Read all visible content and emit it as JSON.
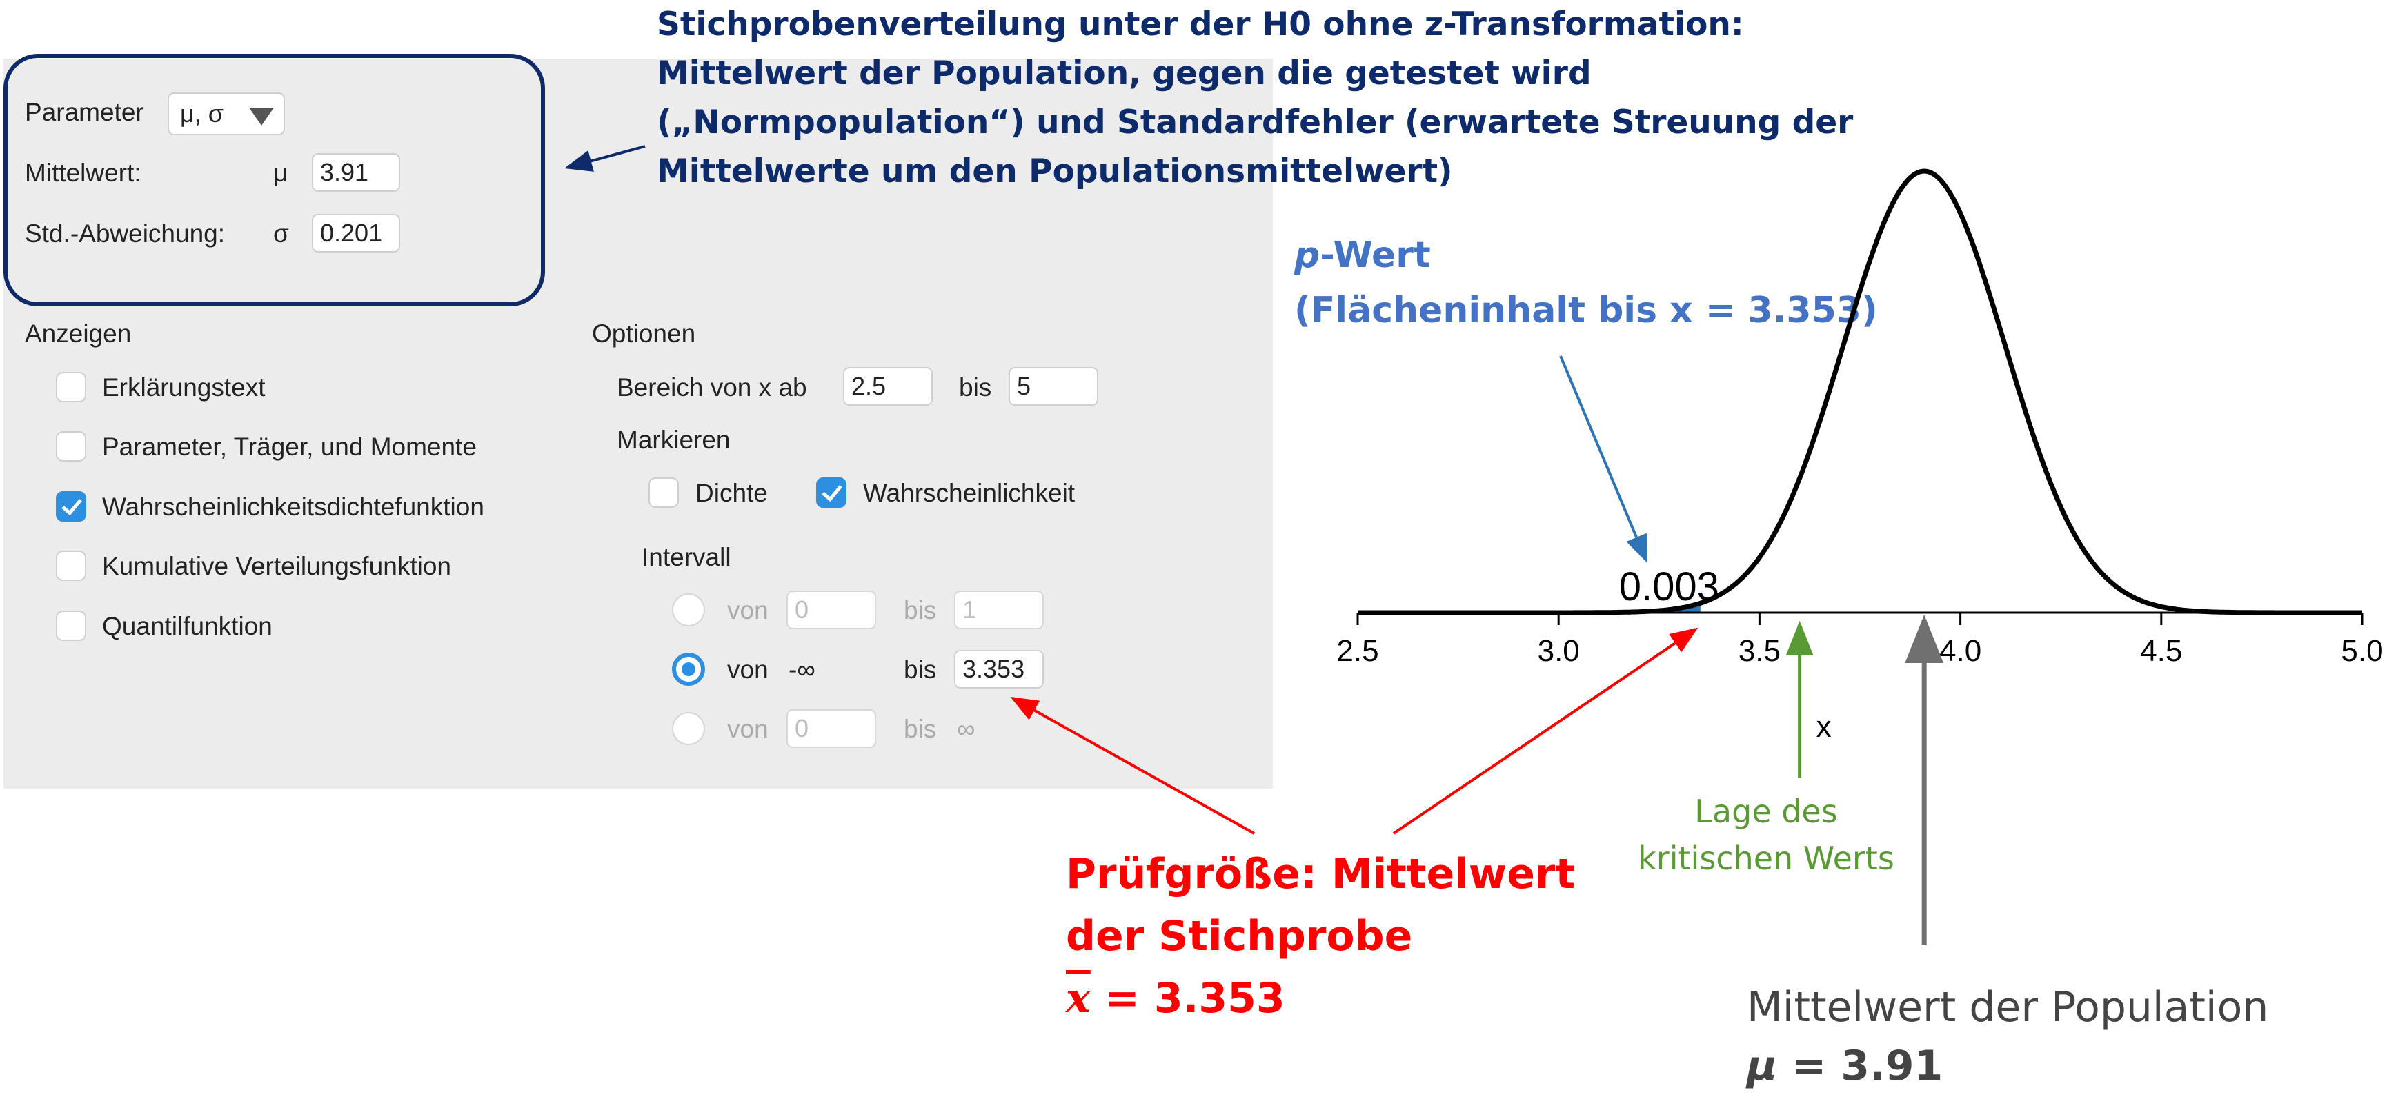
{
  "parameter": {
    "label": "Parameter",
    "select_value": "μ, σ",
    "mean_label": "Mittelwert:",
    "mean_symbol": "μ",
    "mean_value": "3.91",
    "sd_label": "Std.-Abweichung:",
    "sd_symbol": "σ",
    "sd_value": "0.201"
  },
  "anzeigen": {
    "heading": "Anzeigen",
    "items": [
      {
        "label": "Erklärungstext",
        "checked": false
      },
      {
        "label": "Parameter, Träger, und Momente",
        "checked": false
      },
      {
        "label": "Wahrscheinlichkeitsdichtefunktion",
        "checked": true
      },
      {
        "label": "Kumulative Verteilungsfunktion",
        "checked": false
      },
      {
        "label": "Quantilfunktion",
        "checked": false
      }
    ]
  },
  "optionen": {
    "heading": "Optionen",
    "range_label": "Bereich von x ab",
    "range_from": "2.5",
    "range_to_label": "bis",
    "range_to": "5",
    "markieren_heading": "Markieren",
    "dichte_label": "Dichte",
    "dichte_checked": false,
    "wahrsch_label": "Wahrscheinlichkeit",
    "wahrsch_checked": true,
    "intervall_heading": "Intervall",
    "rows": [
      {
        "von_label": "von",
        "von_value": "0",
        "bis_label": "bis",
        "bis_value": "1",
        "selected": false
      },
      {
        "von_label": "von",
        "von_value": "-∞",
        "bis_label": "bis",
        "bis_value": "3.353",
        "selected": true
      },
      {
        "von_label": "von",
        "von_value": "0",
        "bis_label": "bis",
        "bis_value": "∞",
        "selected": false
      }
    ]
  },
  "annotations": {
    "top_blue": [
      "Stichprobenverteilung unter der H0 ohne z-Transformation:",
      "Mittelwert der Population, gegen die getestet wird",
      "(„Normpopulation“) und Standardfehler (erwartete Streuung der",
      "Mittelwerte um den Populationsmittelwert)"
    ],
    "pwert_italic": "p",
    "pwert_rest": "-Wert",
    "pwert_line2": "(Flächeninhalt bis x = 3.353)",
    "red_line1": "Prüfgröße: Mittelwert",
    "red_line2": "der Stichprobe",
    "red_xbar": "x",
    "red_value": " = 3.353",
    "green_line1": "Lage des",
    "green_line2": "kritischen Werts",
    "grey_line1": "Mittelwert der Population",
    "grey_mu": "μ",
    "grey_value": " = 3.91",
    "colors": {
      "navy": "#0d2a6a",
      "blue": "#4472c4",
      "red": "#ff0000",
      "green": "#5a9a34",
      "grey": "#707070",
      "accent": "#2d8fe0"
    }
  },
  "chart_data": {
    "type": "area",
    "distribution": "normal",
    "mean": 3.91,
    "sd": 0.201,
    "xlim": [
      2.5,
      5.0
    ],
    "xticks": [
      "2.5",
      "3.0",
      "3.5",
      "4.0",
      "4.5",
      "5.0"
    ],
    "xlabel": "x",
    "shaded_to": 3.353,
    "shaded_label": "0.003",
    "critical_value_marker": 3.6,
    "mean_marker": 3.91
  }
}
